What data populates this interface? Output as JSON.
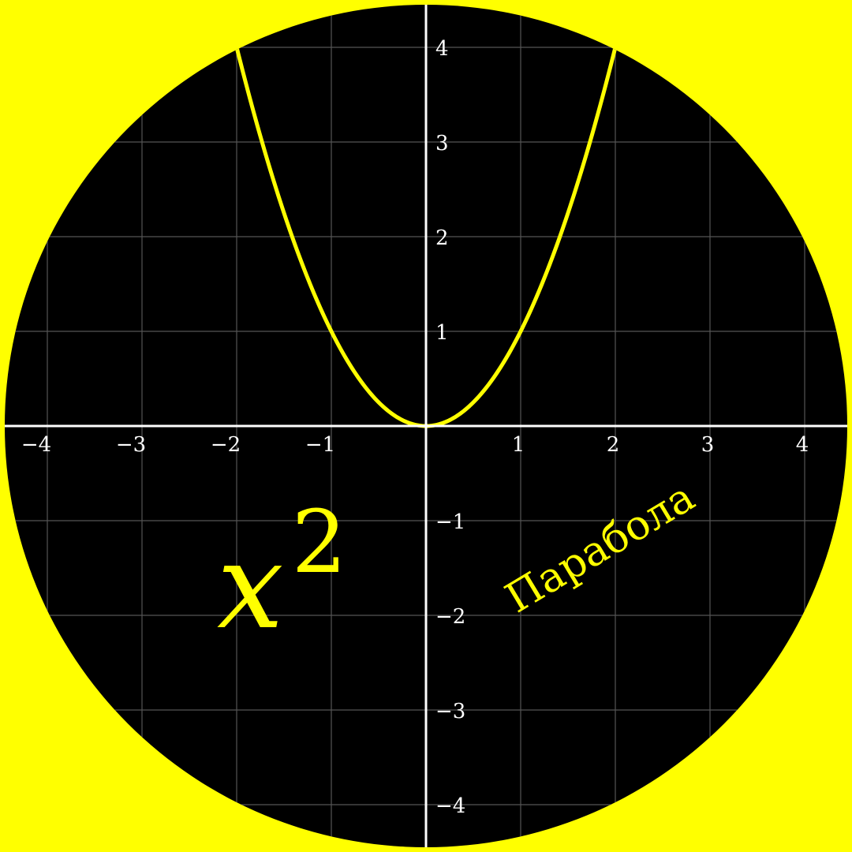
{
  "background_color": "#ffff00",
  "plot_background_color": "#000000",
  "axis_color": "#ffffff",
  "grid_color": "#555555",
  "chart_data": {
    "type": "line",
    "title": "",
    "xlabel": "",
    "ylabel": "",
    "xlim": [
      -4.5,
      4.5
    ],
    "ylim": [
      -4.5,
      4.5
    ],
    "grid": true,
    "x_ticks": [
      -4,
      -3,
      -2,
      -1,
      1,
      2,
      3,
      4
    ],
    "y_ticks": [
      -4,
      -3,
      -2,
      -1,
      1,
      2,
      3,
      4
    ],
    "x_tick_labels": [
      "−4",
      "−3",
      "−2",
      "−1",
      "1",
      "2",
      "3",
      "4"
    ],
    "y_tick_labels": [
      "−4",
      "−3",
      "−2",
      "−1",
      "1",
      "2",
      "3",
      "4"
    ],
    "series": [
      {
        "color": "#ffff00",
        "function": "x^2",
        "x_range": [
          -2,
          2
        ],
        "x": [
          -2,
          -1.5,
          -1,
          -0.5,
          0,
          0.5,
          1,
          1.5,
          2
        ],
        "y": [
          4,
          2.25,
          1,
          0.25,
          0,
          0.25,
          1,
          2.25,
          4
        ]
      }
    ],
    "annotations": [
      {
        "id": "formula",
        "base": "x",
        "exponent": "2",
        "color": "#ffff00"
      },
      {
        "id": "curve-name",
        "text": "Парабола",
        "color": "#ffff00"
      }
    ]
  }
}
